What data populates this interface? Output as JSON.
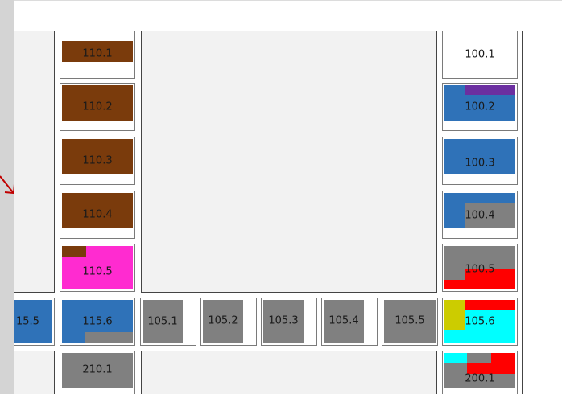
{
  "colors": {
    "brown": "#7a3b0c",
    "blue": "#2f72b8",
    "purple": "#6b2fa0",
    "magenta": "#ff2bd0",
    "gray": "#808080",
    "red": "#ff0000",
    "cyan": "#00ffff",
    "yellow": "#cccc00",
    "panel_bg": "#f2f2f2",
    "arrow_red": "#c00000"
  },
  "cells": {
    "c110_1": {
      "label": "110.1"
    },
    "c110_2": {
      "label": "110.2"
    },
    "c110_3": {
      "label": "110.3"
    },
    "c110_4": {
      "label": "110.4"
    },
    "c110_5": {
      "label": "110.5"
    },
    "c100_1": {
      "label": "100.1"
    },
    "c100_2": {
      "label": "100.2"
    },
    "c100_3": {
      "label": "100.3"
    },
    "c100_4": {
      "label": "100.4"
    },
    "c100_5": {
      "label": "100.5"
    },
    "c115_5": {
      "label": "15.5"
    },
    "c115_6": {
      "label": "115.6"
    },
    "c105_1": {
      "label": "105.1"
    },
    "c105_2": {
      "label": "105.2"
    },
    "c105_3": {
      "label": "105.3"
    },
    "c105_4": {
      "label": "105.4"
    },
    "c105_5": {
      "label": "105.5"
    },
    "c105_6": {
      "label": "105.6"
    },
    "c210_1": {
      "label": "210.1"
    },
    "c200_1": {
      "label": "200.1"
    }
  },
  "icons": {
    "arrow": "red-arrow-icon"
  }
}
